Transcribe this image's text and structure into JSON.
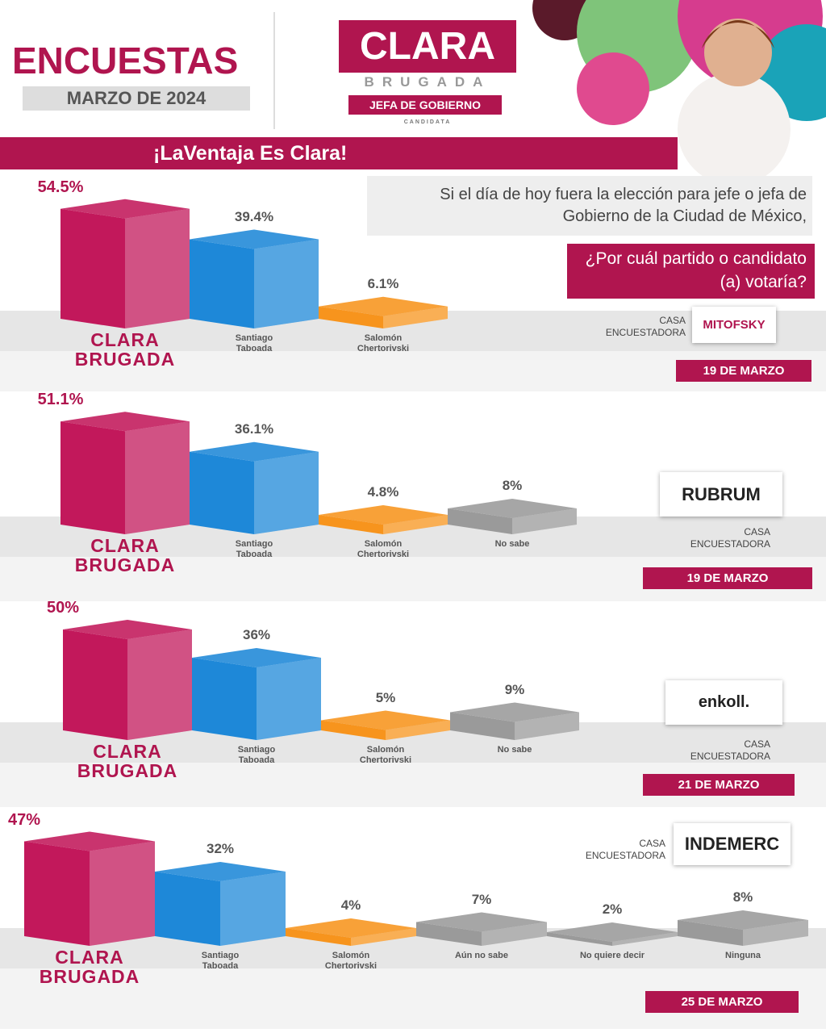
{
  "header": {
    "title": "ENCUESTAS",
    "subtitle": "MARZO DE 2024",
    "logo_name": "CLARA",
    "logo_surname": "BRUGADA",
    "logo_role": "JEFA DE GOBIERNO",
    "logo_note": "CANDIDATA",
    "slogan": "¡LaVentaja Es Clara!",
    "question_intro": "Si el día de hoy fuera la elección para jefe o jefa de Gobierno de la Ciudad de México,",
    "question": "¿Por cuál partido o candidato (a) votaría?"
  },
  "chart_data": [
    {
      "type": "bar3d",
      "categories": [
        "CLARA BRUGADA",
        "Santiago Taboada",
        "Salomón Chertorivski"
      ],
      "values": [
        54.5,
        39.4,
        6.1
      ],
      "value_labels": [
        "54.5%",
        "39.4%",
        "6.1%"
      ],
      "colors": [
        "#c2185b",
        "#1e88d8",
        "#f7941d"
      ],
      "ylim": [
        0,
        60
      ],
      "source_label": "CASA ENCUESTADORA",
      "pollster": "MITOFSKY",
      "date": "19 DE MARZO"
    },
    {
      "type": "bar3d",
      "categories": [
        "CLARA BRUGADA",
        "Santiago Taboada",
        "Salomón Chertorivski",
        "No sabe"
      ],
      "values": [
        51.1,
        36.1,
        4.8,
        8
      ],
      "value_labels": [
        "51.1%",
        "36.1%",
        "4.8%",
        "8%"
      ],
      "colors": [
        "#c2185b",
        "#1e88d8",
        "#f7941d",
        "#9a9a9a"
      ],
      "ylim": [
        0,
        60
      ],
      "source_label": "CASA ENCUESTADORA",
      "pollster": "RUBRUM",
      "date": "19 DE MARZO"
    },
    {
      "type": "bar3d",
      "categories": [
        "CLARA BRUGADA",
        "Santiago Taboada",
        "Salomón Chertorivski",
        "No sabe"
      ],
      "values": [
        50,
        36,
        5,
        9
      ],
      "value_labels": [
        "50%",
        "36%",
        "5%",
        "9%"
      ],
      "colors": [
        "#c2185b",
        "#1e88d8",
        "#f7941d",
        "#9a9a9a"
      ],
      "ylim": [
        0,
        60
      ],
      "source_label": "CASA ENCUESTADORA",
      "pollster": "enkoll.",
      "date": "21 DE MARZO"
    },
    {
      "type": "bar3d",
      "categories": [
        "CLARA BRUGADA",
        "Santiago Taboada",
        "Salomón Chertorivski",
        "Aún no sabe",
        "No quiere decir",
        "Ninguna"
      ],
      "values": [
        47,
        32,
        4,
        7,
        2,
        8
      ],
      "value_labels": [
        "47%",
        "32%",
        "4%",
        "7%",
        "2%",
        "8%"
      ],
      "colors": [
        "#c2185b",
        "#1e88d8",
        "#f7941d",
        "#9a9a9a",
        "#9a9a9a",
        "#9a9a9a"
      ],
      "ylim": [
        0,
        60
      ],
      "source_label": "CASA ENCUESTADORA",
      "pollster": "INDEMERC",
      "date": "25 DE MARZO"
    }
  ]
}
